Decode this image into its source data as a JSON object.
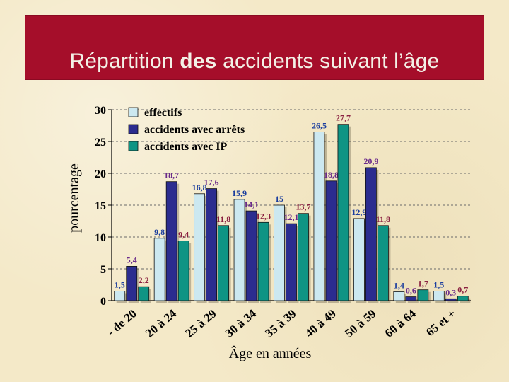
{
  "slide": {
    "title_part1": "Répartition ",
    "title_bold": "des",
    "title_part2": " accidents suivant l’âge"
  },
  "chart_data": {
    "type": "bar",
    "title": "",
    "xlabel": "Âge en années",
    "ylabel": "pourcentage",
    "ylim": [
      0,
      30
    ],
    "yticks": [
      "0",
      "5",
      "10",
      "15",
      "20",
      "25",
      "30"
    ],
    "grid": "horizontal dashed",
    "legend_position": "top-left",
    "categories": [
      "- de 20",
      "20 à 24",
      "25 à 29",
      "30 à 34",
      "35 à 39",
      "40 à 49",
      "50 à 59",
      "60 à 64",
      "65 et +"
    ],
    "series": [
      {
        "name": "effectifs",
        "color": "#cce8f0",
        "values": [
          1.5,
          9.8,
          16.8,
          15.9,
          15,
          26.5,
          12.9,
          1.4,
          1.5
        ],
        "labels": [
          "1,5",
          "9,8",
          "16,8",
          "15,9",
          "15",
          "26,5",
          "12,9",
          "1,4",
          "1,5"
        ]
      },
      {
        "name": "accidents avec arrêts",
        "color": "#2b2c8f",
        "values": [
          5.4,
          18.7,
          17.6,
          14.1,
          12.1,
          18.8,
          20.9,
          0.6,
          0.3
        ],
        "labels": [
          "5,4",
          "18,7",
          "17,6",
          "14,1",
          "12,1",
          "18,8",
          "20,9",
          "0,6",
          "0,3"
        ]
      },
      {
        "name": "accidents avec IP",
        "color": "#0f9484",
        "values": [
          2.2,
          9.4,
          11.8,
          12.3,
          13.7,
          27.7,
          11.8,
          1.7,
          0.7
        ],
        "labels": [
          "2,2",
          "9,4",
          "11,8",
          "12,3",
          "13,7",
          "27,7",
          "11,8",
          "1,7",
          "0,7"
        ]
      }
    ]
  }
}
